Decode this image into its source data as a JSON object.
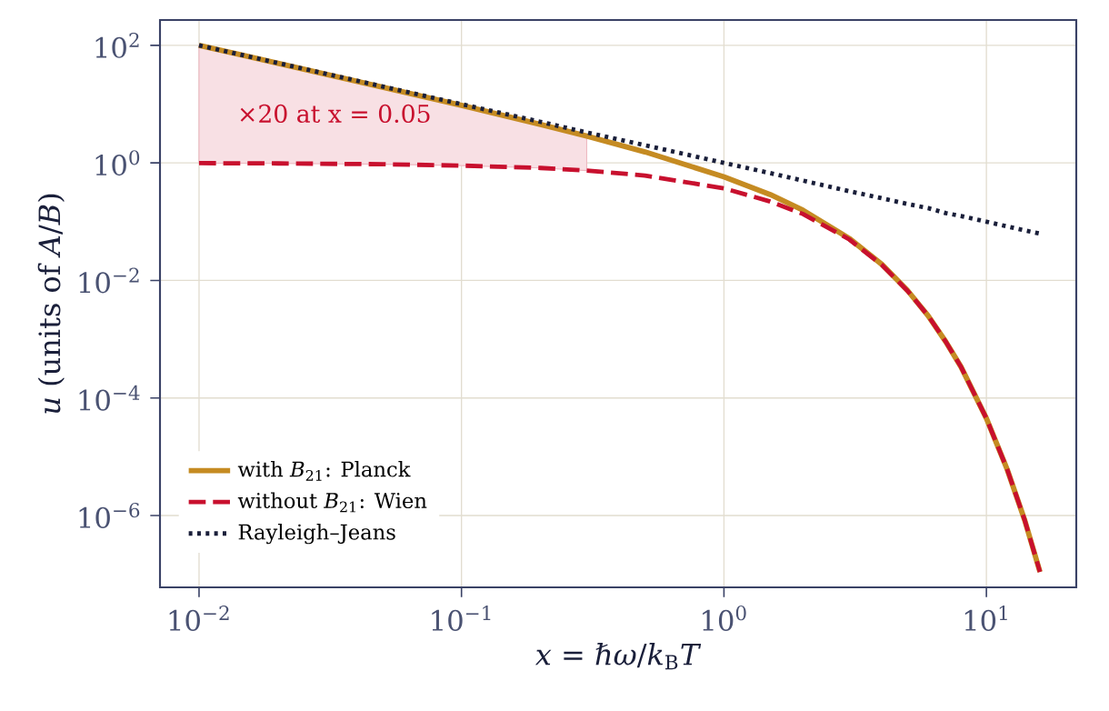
{
  "chart_data": {
    "type": "line",
    "xlabel": "*x* = *ℏω*/*k*$_{B}$*T*",
    "ylabel": "*u*  (units of *A*/*B*)",
    "x": [
      0.01,
      0.02,
      0.05,
      0.1,
      0.2,
      0.3,
      0.5,
      1,
      1.5,
      2,
      3,
      4,
      5,
      6,
      7,
      8,
      10,
      12,
      14,
      16
    ],
    "series": [
      {
        "name": "with *B*$_{21}$: Planck",
        "color": "#c58b22",
        "line_style": "solid",
        "values": [
          100,
          49.5,
          19.5,
          9.5,
          4.5,
          2.86,
          1.54,
          0.58,
          0.29,
          0.157,
          0.052,
          0.0187,
          0.0068,
          0.0025,
          0.00091,
          0.00034,
          4.5e-05,
          6.1e-06,
          8.3e-07,
          1.1e-07
        ]
      },
      {
        "name": "without *B*$_{21}$: Wien",
        "color": "#c8102e",
        "line_style": "dashed",
        "values": [
          0.99,
          0.98,
          0.95,
          0.9,
          0.82,
          0.74,
          0.61,
          0.37,
          0.22,
          0.135,
          0.05,
          0.0183,
          0.0067,
          0.0025,
          0.00091,
          0.00034,
          4.5e-05,
          6.1e-06,
          8.3e-07,
          1.1e-07
        ],
        "lower": [
          0.99,
          0.98,
          0.95,
          0.9,
          0.82,
          0.74,
          null,
          null,
          null,
          null,
          null,
          null,
          null,
          null,
          null,
          null,
          null,
          null,
          null,
          null
        ],
        "upper": [
          100,
          49.5,
          19.5,
          9.5,
          4.5,
          2.86,
          null,
          null,
          null,
          null,
          null,
          null,
          null,
          null,
          null,
          null,
          null,
          null,
          null,
          null
        ]
      },
      {
        "name": "Rayleigh–Jeans",
        "color": "#1a1f3a",
        "line_style": "dotted",
        "values": [
          100,
          50,
          20,
          10,
          5,
          3.3,
          2,
          1,
          0.67,
          0.5,
          0.33,
          0.25,
          0.2,
          0.17,
          0.14,
          0.125,
          0.1,
          0.083,
          0.071,
          0.0625
        ]
      }
    ],
    "annotations": [
      "×20 at x = 0.05"
    ],
    "log": "xy",
    "grid": true,
    "legend": "bottom left",
    "xlim": [
      0.0071,
      22
    ],
    "ylim": [
      6e-08,
      270
    ],
    "xticks": [
      {
        "value": 0.01,
        "label": "10$^{−2}$"
      },
      {
        "value": 0.1,
        "label": "10$^{−1}$"
      },
      {
        "value": 1,
        "label": "10$^{0}$"
      },
      {
        "value": 10,
        "label": "10$^{1}$"
      }
    ],
    "yticks": [
      {
        "value": 1e-06,
        "label": "10$^{−6}$"
      },
      {
        "value": 0.0001,
        "label": "10$^{−4}$"
      },
      {
        "value": 0.01,
        "label": "10$^{−2}$"
      },
      {
        "value": 1,
        "label": "10$^{0}$"
      },
      {
        "value": 100,
        "label": "10$^{2}$"
      }
    ]
  }
}
